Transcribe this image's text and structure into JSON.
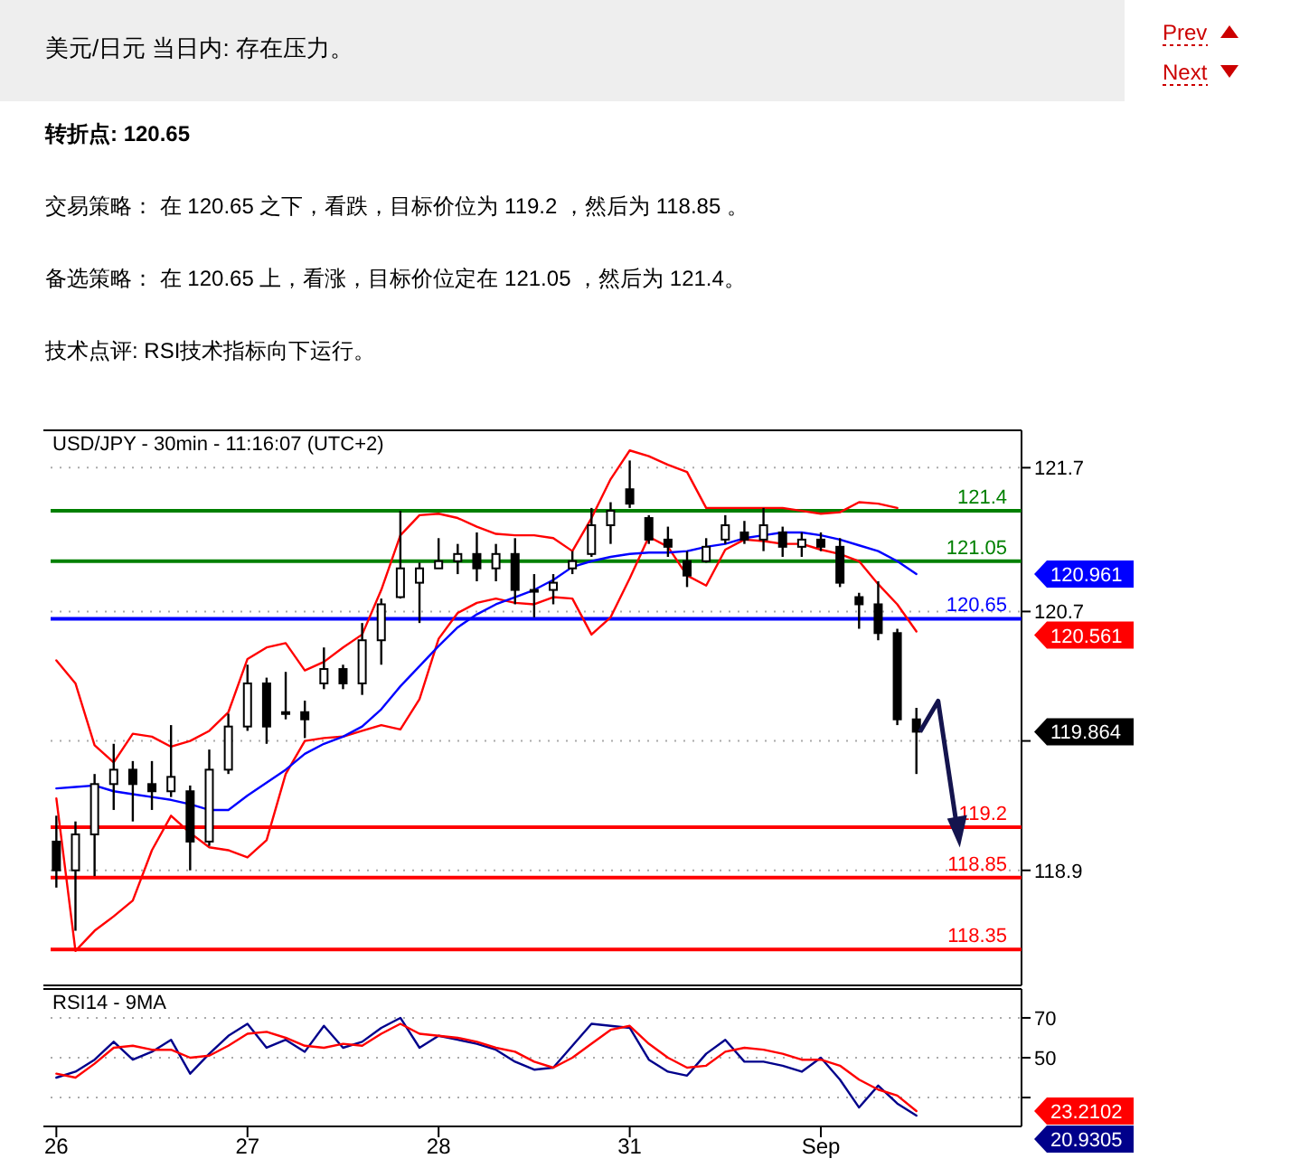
{
  "chart_data": [
    {
      "type": "other",
      "title": "美元/日元 当日内: 存在压力。",
      "annotations": [
        "Prev",
        "Next",
        "转折点: 120.65",
        "交易策略： 在 120.65 之下，看跌，目标价位为 119.2 ，然后为 118.85 。",
        "备选策略： 在 120.65 上，看涨，目标价位定在 121.05 ，然后为 121.4。",
        "技术点评: RSI技术指标向下运行。"
      ]
    },
    {
      "type": "candlestick",
      "title": "USD/JPY - 30min - 11:16:07 (UTC+2)",
      "color": "#000000",
      "categories": [
        null,
        null,
        null,
        null,
        null,
        null,
        null,
        null,
        null,
        null,
        null,
        null,
        null,
        null,
        null,
        null,
        null,
        null,
        null,
        null,
        null,
        null,
        null,
        null,
        null,
        null,
        null,
        null,
        null,
        null,
        null,
        null,
        null,
        null,
        null,
        null,
        null,
        null,
        null,
        null,
        null,
        null,
        null,
        null,
        null,
        null
      ],
      "ohlc": [
        [
          119.1,
          119.28,
          118.78,
          118.9
        ],
        [
          118.9,
          119.24,
          118.48,
          119.15
        ],
        [
          119.15,
          119.57,
          118.86,
          119.5
        ],
        [
          119.5,
          119.78,
          119.32,
          119.6
        ],
        [
          119.6,
          119.66,
          119.24,
          119.5
        ],
        [
          119.5,
          119.66,
          119.32,
          119.45
        ],
        [
          119.45,
          119.91,
          119.41,
          119.55
        ],
        [
          119.45,
          119.49,
          118.9,
          119.1
        ],
        [
          119.1,
          119.74,
          119.07,
          119.6
        ],
        [
          119.6,
          119.99,
          119.57,
          119.9
        ],
        [
          119.9,
          120.33,
          119.87,
          120.2
        ],
        [
          120.2,
          120.24,
          119.78,
          119.9
        ],
        [
          120.0,
          120.28,
          119.95,
          120.0
        ],
        [
          120.0,
          120.08,
          119.82,
          119.95
        ],
        [
          120.2,
          120.45,
          120.16,
          120.3
        ],
        [
          120.3,
          120.33,
          120.16,
          120.2
        ],
        [
          120.2,
          120.62,
          120.12,
          120.5
        ],
        [
          120.5,
          120.79,
          120.33,
          120.75
        ],
        [
          120.8,
          121.4,
          120.79,
          121.0
        ],
        [
          120.9,
          121.04,
          120.62,
          121.0
        ],
        [
          121.0,
          121.21,
          121.0,
          121.05
        ],
        [
          121.05,
          121.17,
          120.96,
          121.1
        ],
        [
          121.1,
          121.25,
          120.91,
          121.0
        ],
        [
          121.0,
          121.17,
          120.91,
          121.1
        ],
        [
          121.1,
          121.21,
          120.75,
          120.85
        ],
        [
          120.85,
          120.96,
          120.66,
          120.85
        ],
        [
          120.85,
          120.96,
          120.75,
          120.9
        ],
        [
          121.0,
          121.12,
          120.96,
          121.05
        ],
        [
          121.1,
          121.42,
          121.08,
          121.3
        ],
        [
          121.3,
          121.46,
          121.17,
          121.4
        ],
        [
          121.55,
          121.75,
          121.42,
          121.45
        ],
        [
          121.35,
          121.37,
          121.17,
          121.2
        ],
        [
          121.2,
          121.29,
          121.08,
          121.15
        ],
        [
          121.05,
          121.12,
          120.87,
          120.95
        ],
        [
          121.05,
          121.21,
          121.04,
          121.15
        ],
        [
          121.2,
          121.37,
          121.17,
          121.3
        ],
        [
          121.25,
          121.33,
          121.17,
          121.2
        ],
        [
          121.2,
          121.42,
          121.12,
          121.3
        ],
        [
          121.25,
          121.29,
          121.08,
          121.15
        ],
        [
          121.15,
          121.25,
          121.08,
          121.2
        ],
        [
          121.2,
          121.25,
          121.12,
          121.15
        ],
        [
          121.15,
          121.21,
          120.87,
          120.9
        ],
        [
          120.8,
          120.83,
          120.58,
          120.75
        ],
        [
          120.75,
          120.91,
          120.5,
          120.55
        ],
        [
          120.55,
          120.58,
          119.91,
          119.95
        ],
        [
          119.95,
          120.03,
          119.57,
          119.864
        ]
      ],
      "series": [
        {
          "type": "line",
          "color": "#ff0000",
          "values": [
            120.36,
            120.2,
            119.77,
            119.65,
            119.85,
            119.83,
            119.76,
            119.8,
            119.87,
            120.0,
            120.37,
            120.45,
            120.48,
            120.29,
            120.35,
            120.45,
            120.54,
            120.85,
            121.23,
            121.37,
            121.38,
            121.35,
            121.29,
            121.24,
            121.23,
            121.23,
            121.21,
            121.12,
            121.35,
            121.62,
            121.82,
            121.78,
            121.72,
            121.67,
            121.42,
            121.42,
            121.42,
            121.42,
            121.42,
            121.4,
            121.38,
            121.39,
            121.46,
            121.45,
            121.42,
            null
          ]
        },
        {
          "type": "line",
          "color": "#ff0000",
          "values": [
            119.4,
            118.34,
            118.48,
            118.58,
            118.69,
            119.04,
            119.28,
            119.16,
            119.06,
            119.04,
            118.99,
            119.11,
            119.57,
            119.8,
            119.82,
            119.83,
            119.87,
            119.91,
            119.88,
            120.09,
            120.51,
            120.69,
            120.76,
            120.79,
            120.76,
            120.75,
            120.8,
            120.79,
            120.54,
            120.66,
            120.93,
            121.22,
            121.15,
            120.95,
            120.88,
            121.13,
            121.2,
            121.19,
            121.17,
            121.17,
            121.13,
            121.1,
            121.05,
            120.89,
            120.75,
            120.561
          ]
        },
        {
          "type": "line",
          "color": "#0000ff",
          "values": [
            119.47,
            119.48,
            119.49,
            119.45,
            119.43,
            119.41,
            119.39,
            119.36,
            119.32,
            119.32,
            119.42,
            119.51,
            119.6,
            119.71,
            119.78,
            119.83,
            119.9,
            120.02,
            120.18,
            120.32,
            120.46,
            120.59,
            120.68,
            120.75,
            120.8,
            120.85,
            120.92,
            121.01,
            121.05,
            121.08,
            121.1,
            121.11,
            121.11,
            121.12,
            121.15,
            121.17,
            121.21,
            121.23,
            121.25,
            121.25,
            121.23,
            121.2,
            121.16,
            121.12,
            121.05,
            120.961
          ]
        }
      ],
      "annotations": [
        "120.961",
        "120.561",
        "119.864"
      ],
      "ref_lines": [
        {
          "axis": "y",
          "value": 121.4,
          "label": "121.4",
          "color": "#008000"
        },
        {
          "axis": "y",
          "value": 121.05,
          "label": "121.05",
          "color": "#008000"
        },
        {
          "axis": "y",
          "value": 120.65,
          "label": "120.65",
          "color": "#0000ff"
        },
        {
          "axis": "y",
          "value": 119.2,
          "label": "119.2",
          "color": "#ff0000"
        },
        {
          "axis": "y",
          "value": 118.85,
          "label": "118.85",
          "color": "#ff0000"
        },
        {
          "axis": "y",
          "value": 118.35,
          "label": "118.35",
          "color": "#ff0000"
        }
      ],
      "ylim": [
        118.1,
        121.96
      ],
      "yticks": [
        121.7,
        120.7,
        {
          "value": 119.8,
          "label": null
        },
        118.9
      ],
      "grid": "y",
      "tick_labels": "y"
    },
    {
      "type": "line",
      "title": "RSI14 - 9MA",
      "categories": [
        "26",
        null,
        null,
        null,
        null,
        null,
        null,
        null,
        null,
        null,
        "27",
        null,
        null,
        null,
        null,
        null,
        null,
        null,
        null,
        null,
        "28",
        null,
        null,
        null,
        null,
        null,
        null,
        null,
        null,
        null,
        "31",
        null,
        null,
        null,
        null,
        null,
        null,
        null,
        null,
        null,
        "Sep",
        null,
        null,
        null,
        null,
        null
      ],
      "series": [
        {
          "color": "#00008b",
          "values": [
            40,
            43,
            49,
            58,
            49,
            53,
            59,
            42,
            52,
            61,
            67,
            55,
            59,
            53,
            66,
            55,
            58,
            65,
            70,
            55,
            61,
            59,
            57,
            54,
            48,
            44,
            45,
            56,
            67,
            66,
            65,
            49,
            43,
            41,
            52,
            59,
            48,
            48,
            46,
            43,
            50,
            39,
            25,
            36,
            27,
            20.9305
          ]
        },
        {
          "color": "#ff0000",
          "values": [
            42,
            40,
            47,
            55,
            56,
            54,
            54,
            50,
            51,
            56,
            62,
            63,
            60,
            56,
            55,
            57,
            56,
            62,
            67,
            62,
            61,
            60,
            58,
            55,
            53,
            48,
            45,
            50,
            57,
            64,
            66,
            57,
            50,
            45,
            46,
            53,
            55,
            54,
            52,
            49,
            49,
            46,
            39,
            34,
            31,
            23.2102
          ]
        }
      ],
      "annotations": [
        "23.2102",
        "20.9305"
      ],
      "ylim": [
        15.5,
        84.5
      ],
      "yticks": [
        70,
        50,
        {
          "value": 30,
          "label": null
        }
      ],
      "grid": "y"
    }
  ]
}
